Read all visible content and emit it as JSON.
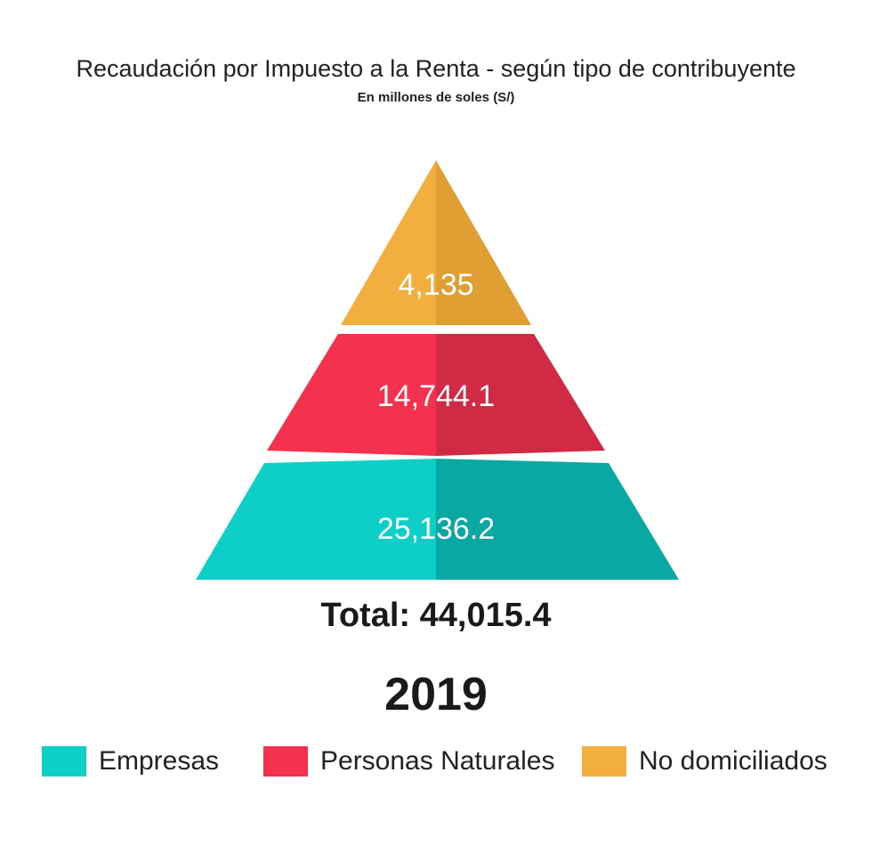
{
  "title": "Recaudación por Impuesto a la Renta - según tipo de contribuyente",
  "subtitle": "En millones de soles (S/)",
  "total_label": "Total: 44,015.4",
  "year": "2019",
  "chart_data": {
    "type": "pyramid",
    "title": "Recaudación por Impuesto a la Renta - según tipo de contribuyente",
    "subtitle": "En millones de soles (S/)",
    "categories": [
      "No domiciliados",
      "Personas Naturales",
      "Empresas"
    ],
    "values": [
      4135,
      14744.1,
      25136.2
    ],
    "value_labels": [
      "4,135",
      "14,744.1",
      "25,136.2"
    ],
    "total": 44015.4,
    "year": 2019,
    "colors": {
      "No domiciliados": {
        "light": "#F2AE3F",
        "dark": "#E09F33"
      },
      "Personas Naturales": {
        "light": "#F4324F",
        "dark": "#D02A44"
      },
      "Empresas": {
        "light": "#0ECFC7",
        "dark": "#0AA8A2"
      }
    },
    "legend_position": "bottom"
  },
  "legend": [
    {
      "label": "Empresas",
      "color": "#0ECFC7"
    },
    {
      "label": "Personas Naturales",
      "color": "#F4324F"
    },
    {
      "label": "No domiciliados",
      "color": "#F2AE3F"
    }
  ]
}
